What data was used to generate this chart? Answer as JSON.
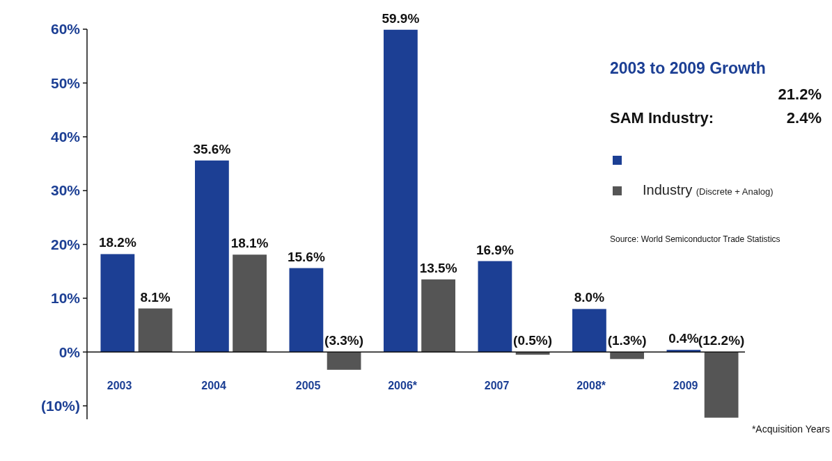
{
  "chart_data": {
    "type": "bar",
    "categories": [
      "2003",
      "2004",
      "2005",
      "2006*",
      "2007",
      "2008*",
      "2009"
    ],
    "series": [
      {
        "color": "#1c3f94",
        "values": [
          18.2,
          35.6,
          15.6,
          59.9,
          16.9,
          8.0,
          0.4
        ],
        "value_labels": [
          "18.2%",
          "35.6%",
          "15.6%",
          "59.9%",
          "16.9%",
          "8.0%",
          "0.4%"
        ]
      },
      {
        "name": "Industry (Discrete + Analog)",
        "color": "#555555",
        "values": [
          8.1,
          18.1,
          -3.3,
          13.5,
          -0.5,
          -1.3,
          -12.2
        ],
        "value_labels": [
          "8.1%",
          "18.1%",
          "(3.3%)",
          "13.5%",
          "(0.5%)",
          "(1.3%)",
          "(12.2%)"
        ]
      }
    ],
    "ylim": [
      -12.5,
      60
    ],
    "yticks": [
      {
        "value": -10,
        "label": "(10%)"
      },
      {
        "value": 0,
        "label": "0%"
      },
      {
        "value": 10,
        "label": "10%"
      },
      {
        "value": 20,
        "label": "20%"
      },
      {
        "value": 30,
        "label": "30%"
      },
      {
        "value": 40,
        "label": "40%"
      },
      {
        "value": 50,
        "label": "50%"
      },
      {
        "value": 60,
        "label": "60%"
      }
    ],
    "legend": "right",
    "grid": false,
    "annotations": [
      "2003 to 2009 Growth",
      "21.2%",
      "SAM Industry:",
      "2.4%",
      "Source: World Semiconductor Trade Statistics",
      "*Acquisition Years"
    ]
  }
}
